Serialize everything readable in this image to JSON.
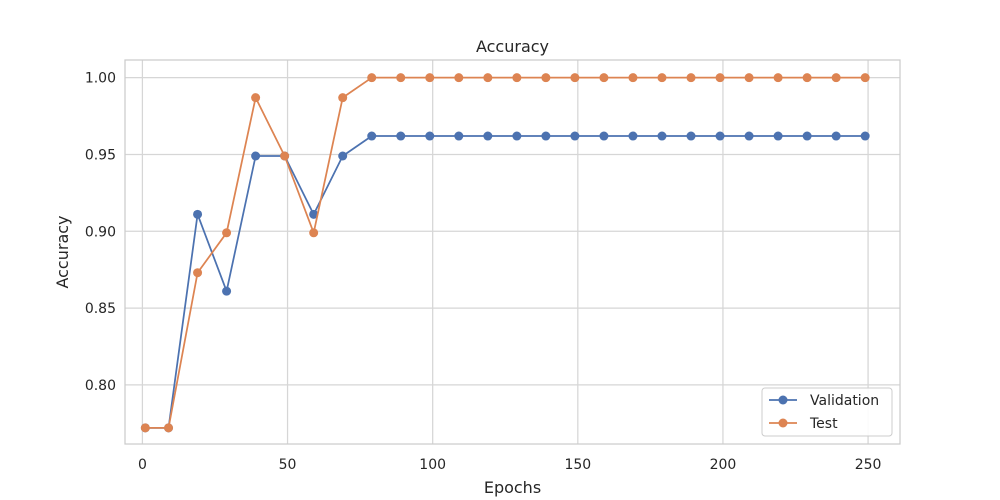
{
  "chart_data": {
    "type": "line",
    "title": "Accuracy",
    "xlabel": "Epochs",
    "ylabel": "Accuracy",
    "xlim": [
      -6,
      261
    ],
    "ylim": [
      0.7615,
      1.0115
    ],
    "xticks": [
      0,
      50,
      100,
      150,
      200,
      250
    ],
    "yticks": [
      0.8,
      0.85,
      0.9,
      0.95,
      1.0
    ],
    "ytick_labels": [
      "0.80",
      "0.85",
      "0.90",
      "0.95",
      "1.00"
    ],
    "grid": true,
    "legend_position": "lower-right",
    "x": [
      1,
      9,
      19,
      29,
      39,
      49,
      59,
      69,
      79,
      89,
      99,
      109,
      119,
      129,
      139,
      149,
      159,
      169,
      179,
      189,
      199,
      209,
      219,
      229,
      239,
      249
    ],
    "series": [
      {
        "name": "Validation",
        "color": "#4c72b0",
        "values": [
          0.772,
          0.772,
          0.911,
          0.861,
          0.949,
          0.949,
          0.911,
          0.949,
          0.962,
          0.962,
          0.962,
          0.962,
          0.962,
          0.962,
          0.962,
          0.962,
          0.962,
          0.962,
          0.962,
          0.962,
          0.962,
          0.962,
          0.962,
          0.962,
          0.962,
          0.962
        ]
      },
      {
        "name": "Test",
        "color": "#dd8452",
        "values": [
          0.772,
          0.772,
          0.873,
          0.899,
          0.987,
          0.949,
          0.899,
          0.987,
          1.0,
          1.0,
          1.0,
          1.0,
          1.0,
          1.0,
          1.0,
          1.0,
          1.0,
          1.0,
          1.0,
          1.0,
          1.0,
          1.0,
          1.0,
          1.0,
          1.0,
          1.0
        ]
      }
    ]
  }
}
